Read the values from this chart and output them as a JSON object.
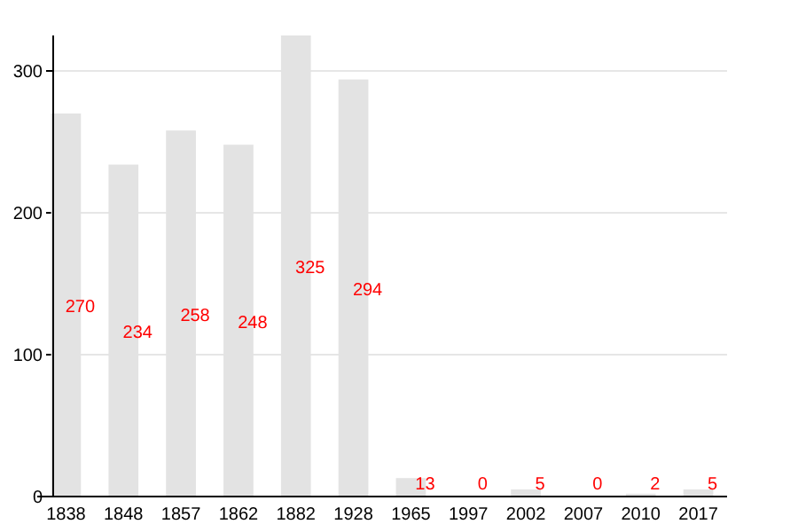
{
  "chart_data": {
    "type": "bar",
    "categories": [
      "1838",
      "1848",
      "1857",
      "1862",
      "1882",
      "1928",
      "1965",
      "1997",
      "2002",
      "2007",
      "2010",
      "2017"
    ],
    "values": [
      270,
      234,
      258,
      248,
      325,
      294,
      13,
      0,
      5,
      0,
      2,
      5
    ],
    "color": "#e3e3e3",
    "ylim": [
      0,
      325
    ],
    "yticks": [
      0,
      100,
      200,
      300
    ],
    "grid": "y",
    "data_labels": true
  }
}
